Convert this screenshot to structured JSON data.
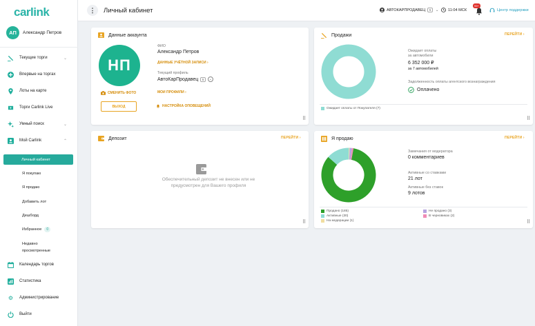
{
  "app": {
    "logo": "carlink",
    "title": "Личный кабинет"
  },
  "user": {
    "initials": "АП",
    "name": "Александр Петров"
  },
  "sidebar": {
    "items": [
      {
        "label": "Текущие торги",
        "icon": "auction-icon"
      },
      {
        "label": "Впервые на торгах",
        "icon": "plus-circle-icon"
      },
      {
        "label": "Лоты на карте",
        "icon": "map-pin-icon"
      },
      {
        "label": "Торги Carlink Live",
        "icon": "live-icon"
      },
      {
        "label": "Умный поиск",
        "icon": "sparkle-icon"
      },
      {
        "label": "Мой Carlink",
        "icon": "user-square-icon"
      },
      {
        "label": "Календарь торгов",
        "icon": "calendar-icon"
      },
      {
        "label": "Статистика",
        "icon": "chart-icon"
      },
      {
        "label": "Администрирование",
        "icon": "gear-icon"
      },
      {
        "label": "Выйти",
        "icon": "power-icon"
      }
    ],
    "sub": {
      "active": "Личный кабинет",
      "buying": "Я покупаю",
      "selling": "Я продаю",
      "add_lot": "Добавить лот",
      "dashboard": "Дешборд",
      "favorites": "Избранное",
      "favorites_count": "0",
      "recent": "Недавно\nпросмотренные"
    }
  },
  "topbar": {
    "account": "АВТОКАРПРОДАВЕЦ",
    "account_badge": "5",
    "time": "11:04 МСК",
    "notif_count": "99+",
    "support": "Центр поддержки"
  },
  "account": {
    "title": "Данные аккаунта",
    "initials": "НП",
    "change_photo": "СМЕНИТЬ ФОТО",
    "logout": "ВЫХОД",
    "fio_label": "ФИО",
    "fio": "Александр Петров",
    "account_link": "ДАННЫЕ УЧЁТНОЙ ЗАПИСИ",
    "profile_label": "Текущий профиль",
    "profile": "АвтоКарПродавец",
    "profile_badge": "5",
    "profiles_link": "МОИ ПРОФИЛИ",
    "notifications": "НАСТРОЙКА ОПОВЕЩЕНИЙ"
  },
  "sales": {
    "title": "Продажи",
    "more": "ПЕРЕЙТИ",
    "await_label": "Ожидает оплаты\nза автомобили",
    "amount": "6 352 000 ₽",
    "cars": "за 7 автомобилей",
    "debt_label": "Задолженность оплаты агентского вознаграждения",
    "paid": "Оплачено",
    "legend": "Ожидает оплаты от Покупателя (7)",
    "color": "#8fdcd3"
  },
  "deposit": {
    "title": "Депозит",
    "more": "ПЕРЕЙТИ",
    "info": "Обеспечительный депозит не внесен или не предусмотрен для Вашего профиля"
  },
  "selling": {
    "title": "Я продаю",
    "more": "ПЕРЕЙТИ",
    "remarks_label": "Замечания от модератора",
    "remarks": "0 комментариев",
    "bids_label": "Активные со ставками",
    "bids": "21 лот",
    "nobids_label": "Активные без ставок",
    "nobids": "9 лотов",
    "legend": [
      {
        "label": "Продано (185)",
        "color": "#2ea02a",
        "value": 185
      },
      {
        "label": "Активные (30)",
        "color": "#8fdcd3",
        "value": 30
      },
      {
        "label": "На модерации (1)",
        "color": "#f1dea0",
        "value": 1
      },
      {
        "label": "Не продано (3)",
        "color": "#b6a4e0",
        "value": 3
      },
      {
        "label": "В черновиках (2)",
        "color": "#f08bb6",
        "value": 2
      }
    ]
  }
}
